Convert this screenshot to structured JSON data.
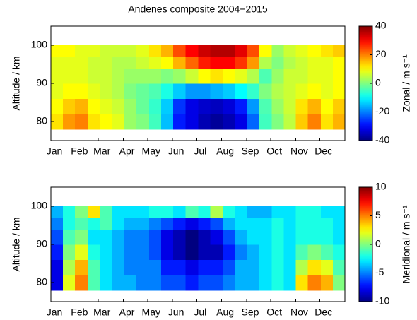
{
  "chart_data": [
    {
      "type": "heatmap",
      "title": "Andenes composite 2004−2015",
      "ylabel": "Altitude / km",
      "colorbar_label": "Zonal / m s⁻¹",
      "colormap": "jet",
      "x_edges": [
        1,
        16,
        31,
        47,
        62,
        77,
        92,
        107,
        123,
        138,
        153,
        168,
        184,
        199,
        214,
        229,
        244,
        260,
        275,
        290,
        305,
        320,
        336,
        351,
        366
      ],
      "y_edges": [
        78,
        82,
        86,
        90,
        94,
        97,
        100
      ],
      "values": [
        [
          12,
          18,
          20,
          12,
          10,
          8,
          2,
          0,
          -5,
          -15,
          -28,
          -32,
          -36,
          -38,
          -36,
          -32,
          -22,
          -5,
          0,
          5,
          14,
          20,
          12,
          16
        ],
        [
          10,
          14,
          16,
          10,
          8,
          6,
          2,
          -2,
          -6,
          -14,
          -26,
          -32,
          -34,
          -35,
          -33,
          -28,
          -18,
          -4,
          2,
          6,
          12,
          16,
          10,
          14
        ],
        [
          8,
          10,
          10,
          8,
          6,
          4,
          0,
          -2,
          -4,
          -8,
          -14,
          -18,
          -18,
          -16,
          -14,
          -10,
          -6,
          0,
          4,
          6,
          8,
          10,
          8,
          10
        ],
        [
          8,
          8,
          8,
          6,
          6,
          4,
          2,
          2,
          2,
          0,
          2,
          6,
          10,
          12,
          10,
          8,
          4,
          -4,
          2,
          6,
          6,
          8,
          8,
          10
        ],
        [
          8,
          8,
          8,
          6,
          6,
          4,
          4,
          6,
          8,
          10,
          16,
          22,
          28,
          30,
          30,
          26,
          18,
          4,
          0,
          4,
          6,
          8,
          8,
          10
        ],
        [
          10,
          10,
          8,
          8,
          6,
          6,
          6,
          8,
          12,
          16,
          24,
          30,
          34,
          36,
          36,
          32,
          24,
          10,
          2,
          6,
          8,
          10,
          12,
          14
        ]
      ],
      "xlim": [
        1,
        366
      ],
      "ylim": [
        75,
        105
      ],
      "xticks": [
        {
          "value": 1,
          "label": "Jan"
        },
        {
          "value": 32,
          "label": "Feb"
        },
        {
          "value": 60,
          "label": "Mar"
        },
        {
          "value": 91,
          "label": "Apr"
        },
        {
          "value": 121,
          "label": "May"
        },
        {
          "value": 152,
          "label": "Jun"
        },
        {
          "value": 182,
          "label": "Jul"
        },
        {
          "value": 213,
          "label": "Aug"
        },
        {
          "value": 244,
          "label": "Sep"
        },
        {
          "value": 274,
          "label": "Oct"
        },
        {
          "value": 305,
          "label": "Nov"
        },
        {
          "value": 335,
          "label": "Dec"
        }
      ],
      "yticks": [
        80,
        90,
        100
      ],
      "clim": [
        -40,
        40
      ],
      "cticks": [
        -40,
        -20,
        0,
        20,
        40
      ]
    },
    {
      "type": "heatmap",
      "ylabel": "Altitude / km",
      "colorbar_label": "Meridional / m s⁻¹",
      "colormap": "jet",
      "x_edges": [
        1,
        16,
        31,
        47,
        62,
        77,
        92,
        107,
        123,
        138,
        153,
        168,
        184,
        199,
        214,
        229,
        244,
        260,
        275,
        290,
        305,
        320,
        336,
        351,
        366
      ],
      "y_edges": [
        78,
        82,
        86,
        90,
        94,
        97,
        100
      ],
      "values": [
        [
          -8,
          2,
          5,
          -1,
          -3,
          -4,
          -4,
          -5,
          -5,
          -6,
          -6,
          -7,
          -6,
          -6,
          -5,
          -4,
          -4,
          -3,
          -2,
          -3,
          3,
          5,
          4,
          0
        ],
        [
          -8,
          1,
          4,
          -1,
          -3,
          -4,
          -5,
          -5,
          -5,
          -7,
          -7,
          -8,
          -7,
          -7,
          -6,
          -4,
          -4,
          -3,
          -2,
          -3,
          1,
          3,
          2,
          -1
        ],
        [
          -7,
          0,
          2,
          -2,
          -3,
          -4,
          -5,
          -5,
          -6,
          -8,
          -9,
          -10,
          -9,
          -9,
          -7,
          -5,
          -4,
          -3,
          -2,
          -3,
          -1,
          0,
          -1,
          -2
        ],
        [
          -6,
          -1,
          0,
          -3,
          -3,
          -4,
          -5,
          -5,
          -6,
          -8,
          -9,
          -10,
          -9,
          -8,
          -6,
          -4,
          -3,
          -3,
          -2,
          -3,
          -2,
          -2,
          -2,
          -3
        ],
        [
          -5,
          -2,
          -1,
          -2,
          -1,
          -3,
          -4,
          -4,
          -5,
          -6,
          -7,
          -8,
          -7,
          -6,
          -4,
          -3,
          -3,
          -3,
          -2,
          -3,
          -2,
          -2,
          -2,
          -3
        ],
        [
          -4,
          -2,
          0,
          3,
          -1,
          -3,
          -3,
          -3,
          -2,
          -2,
          -3,
          -1,
          -2,
          1,
          -2,
          -3,
          -4,
          -4,
          -3,
          -3,
          -2,
          -2,
          -3,
          -3
        ]
      ],
      "xlim": [
        1,
        366
      ],
      "ylim": [
        75,
        105
      ],
      "xticks": [
        {
          "value": 1,
          "label": "Jan"
        },
        {
          "value": 32,
          "label": "Feb"
        },
        {
          "value": 60,
          "label": "Mar"
        },
        {
          "value": 91,
          "label": "Apr"
        },
        {
          "value": 121,
          "label": "May"
        },
        {
          "value": 152,
          "label": "Jun"
        },
        {
          "value": 182,
          "label": "Jul"
        },
        {
          "value": 213,
          "label": "Aug"
        },
        {
          "value": 244,
          "label": "Sep"
        },
        {
          "value": 274,
          "label": "Oct"
        },
        {
          "value": 305,
          "label": "Nov"
        },
        {
          "value": 335,
          "label": "Dec"
        }
      ],
      "yticks": [
        80,
        90,
        100
      ],
      "clim": [
        -10,
        10
      ],
      "cticks": [
        -10,
        -5,
        0,
        5,
        10
      ]
    }
  ]
}
